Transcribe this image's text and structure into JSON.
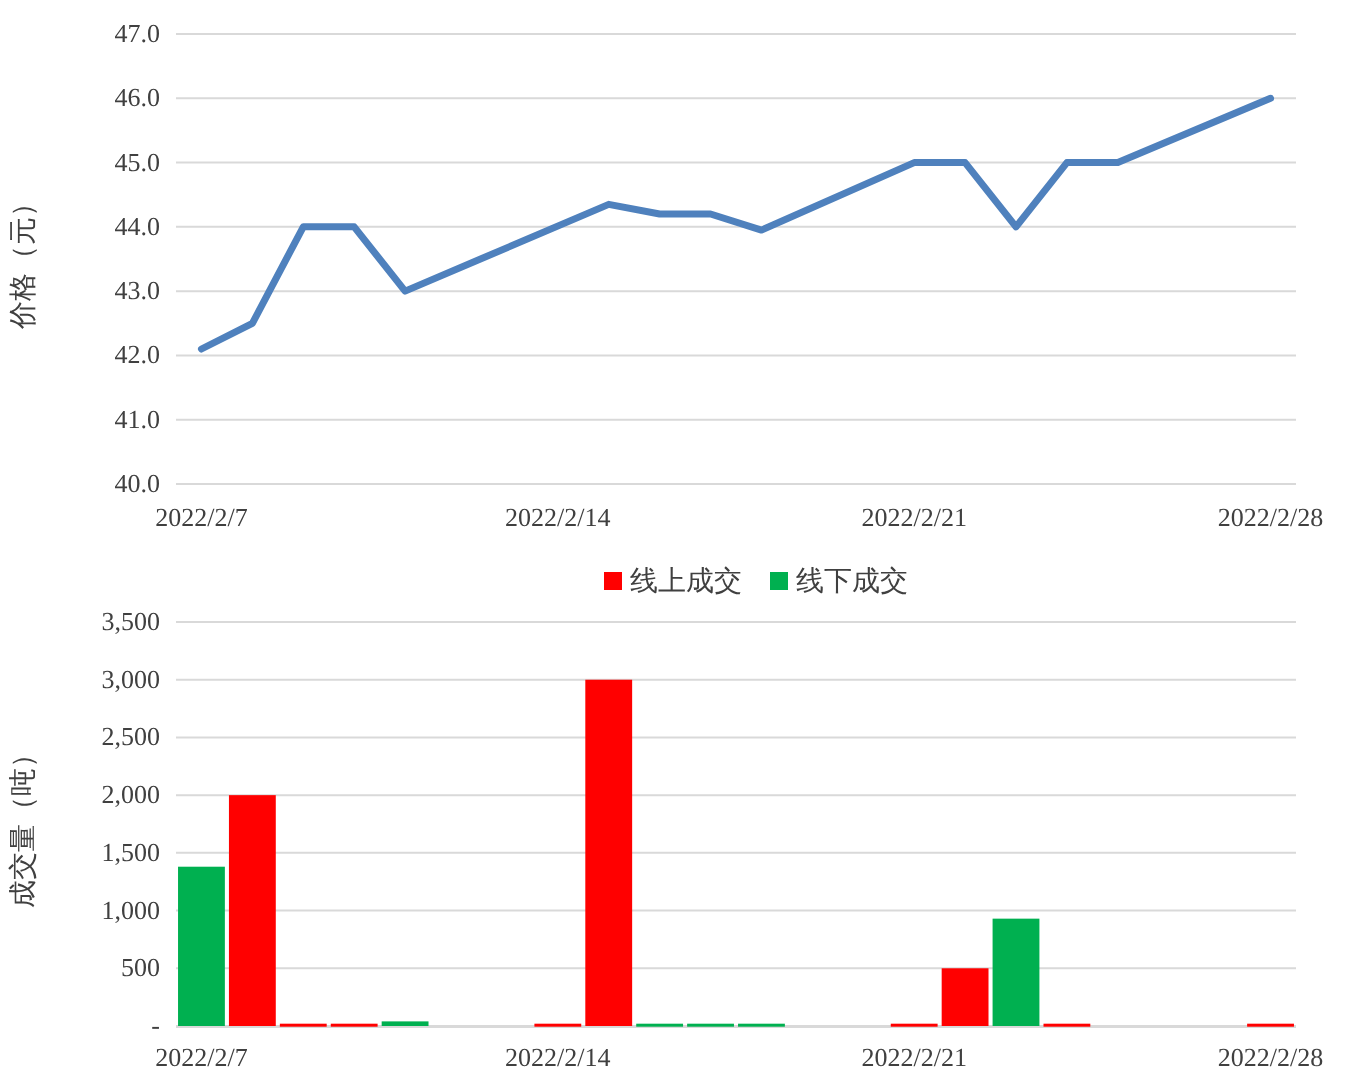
{
  "chart_data": [
    {
      "type": "line",
      "ylabel": "价格（元）",
      "x": [
        "2022-02-07",
        "2022-02-08",
        "2022-02-09",
        "2022-02-10",
        "2022-02-11",
        "2022-02-15",
        "2022-02-16",
        "2022-02-17",
        "2022-02-18",
        "2022-02-21",
        "2022-02-22",
        "2022-02-23",
        "2022-02-24",
        "2022-02-25",
        "2022-02-28"
      ],
      "series": [
        {
          "color": "#4f81bd",
          "values": [
            42.1,
            42.5,
            44.0,
            44.0,
            43.0,
            44.35,
            44.2,
            44.2,
            43.95,
            45.0,
            45.0,
            44.0,
            45.0,
            45.0,
            46.0
          ]
        }
      ],
      "xlim": [
        "2022-02-06T12:00",
        "2022-02-28T12:00"
      ],
      "xticks": [
        {
          "value": "2022-02-07",
          "label": "2022/2/7"
        },
        {
          "value": "2022-02-14",
          "label": "2022/2/14"
        },
        {
          "value": "2022-02-21",
          "label": "2022/2/21"
        },
        {
          "value": "2022-02-28",
          "label": "2022/2/28"
        }
      ],
      "ylim": [
        40,
        47
      ],
      "yticks": [
        {
          "value": 40,
          "label": "40.0"
        },
        {
          "value": 41,
          "label": "41.0"
        },
        {
          "value": 42,
          "label": "42.0"
        },
        {
          "value": 43,
          "label": "43.0"
        },
        {
          "value": 44,
          "label": "44.0"
        },
        {
          "value": 45,
          "label": "45.0"
        },
        {
          "value": 46,
          "label": "46.0"
        },
        {
          "value": 47,
          "label": "47.0"
        }
      ],
      "grid": "y",
      "marker": "none",
      "line_style": "solid",
      "legend": false
    },
    {
      "type": "bar",
      "ylabel": "成交量（吨）",
      "x": [
        "2022-02-07",
        "2022-02-08",
        "2022-02-09",
        "2022-02-10",
        "2022-02-11",
        "2022-02-14",
        "2022-02-15",
        "2022-02-16",
        "2022-02-17",
        "2022-02-18",
        "2022-02-21",
        "2022-02-22",
        "2022-02-23",
        "2022-02-24",
        "2022-02-28"
      ],
      "series": [
        {
          "name": "线上成交",
          "color": "#ff0000",
          "values": [
            null,
            2000,
            20,
            20,
            null,
            20,
            3000,
            null,
            null,
            null,
            20,
            500,
            null,
            20,
            20
          ]
        },
        {
          "name": "线下成交",
          "color": "#00b050",
          "values": [
            1380,
            null,
            null,
            null,
            40,
            null,
            null,
            20,
            20,
            20,
            null,
            null,
            930,
            null,
            null
          ]
        }
      ],
      "xlim": [
        "2022-02-06T12:00",
        "2022-02-28T12:00"
      ],
      "xticks": [
        {
          "value": "2022-02-07",
          "label": "2022/2/7"
        },
        {
          "value": "2022-02-14",
          "label": "2022/2/14"
        },
        {
          "value": "2022-02-21",
          "label": "2022/2/21"
        },
        {
          "value": "2022-02-28",
          "label": "2022/2/28"
        }
      ],
      "ylim": [
        0,
        3500
      ],
      "yticks": [
        {
          "value": 0,
          "label": "-"
        },
        {
          "value": 500,
          "label": "500"
        },
        {
          "value": 1000,
          "label": "1,000"
        },
        {
          "value": 1500,
          "label": "1,500"
        },
        {
          "value": 2000,
          "label": "2,000"
        },
        {
          "value": 2500,
          "label": "2,500"
        },
        {
          "value": 3000,
          "label": "3,000"
        },
        {
          "value": 3500,
          "label": "3,500"
        }
      ],
      "grid": "y",
      "legend": "top"
    }
  ]
}
